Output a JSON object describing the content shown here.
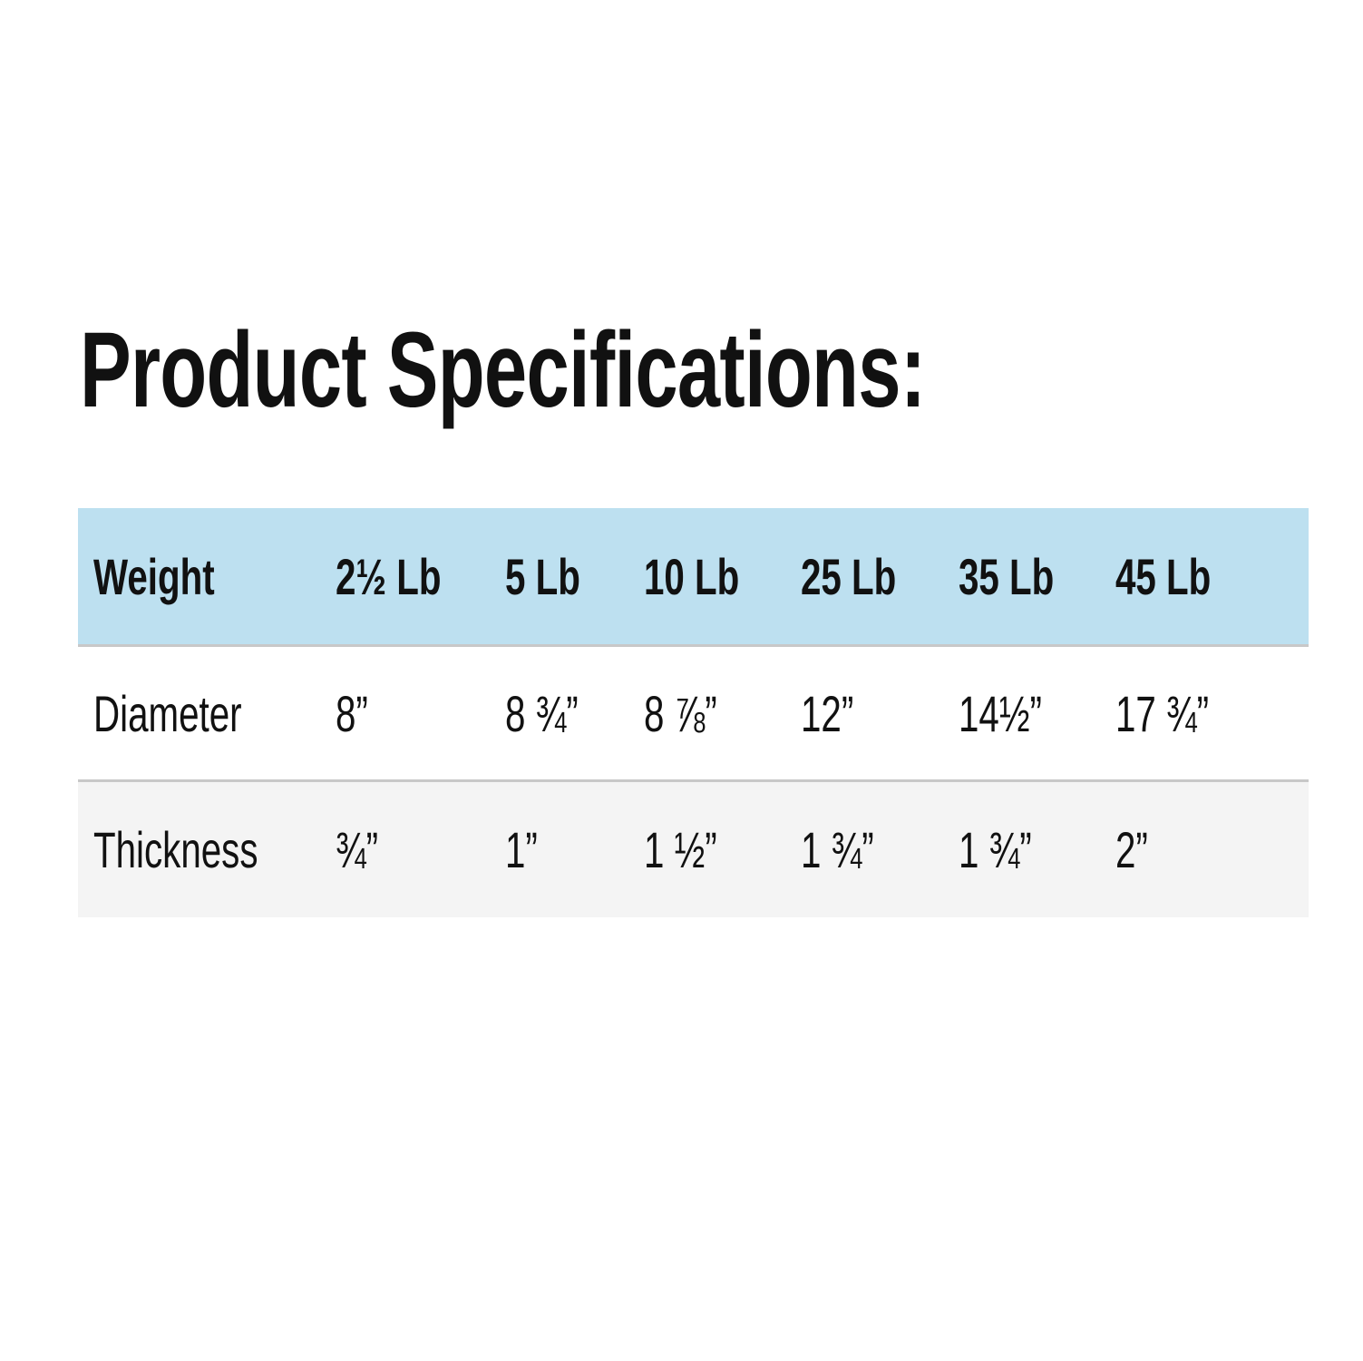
{
  "title": "Product Specifications:",
  "table": {
    "header": [
      "Weight",
      "2½ Lb",
      "5 Lb",
      "10 Lb",
      "25 Lb",
      "35 Lb",
      "45 Lb"
    ],
    "rows": [
      [
        "Diameter",
        "8”",
        "8 ¾”",
        "8 ⅞”",
        "12”",
        "14½”",
        "17 ¾”"
      ],
      [
        "Thickness",
        "¾”",
        "1”",
        "1 ½”",
        "1 ¾”",
        "1 ¾”",
        "2”"
      ]
    ]
  },
  "colors": {
    "header_bg": "#bde0f0",
    "alt_row_bg": "#f4f4f4",
    "divider": "#c8c8c8"
  }
}
